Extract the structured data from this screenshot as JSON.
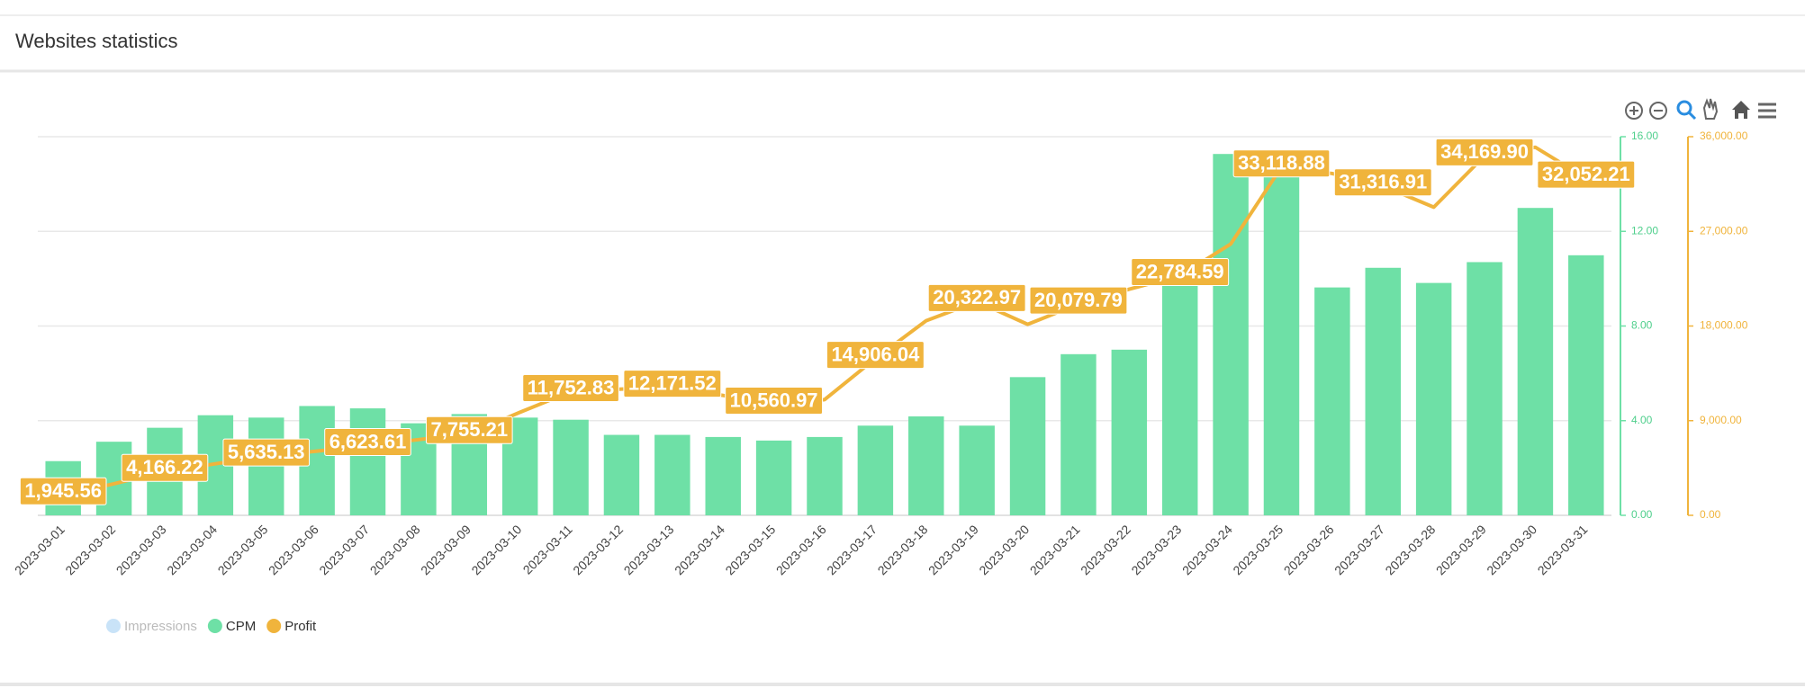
{
  "header": {
    "title": "Websites statistics"
  },
  "chart_data": {
    "type": "bar-line",
    "categories": [
      "2023-03-01",
      "2023-03-02",
      "2023-03-03",
      "2023-03-04",
      "2023-03-05",
      "2023-03-06",
      "2023-03-07",
      "2023-03-08",
      "2023-03-09",
      "2023-03-10",
      "2023-03-11",
      "2023-03-12",
      "2023-03-13",
      "2023-03-14",
      "2023-03-15",
      "2023-03-16",
      "2023-03-17",
      "2023-03-18",
      "2023-03-19",
      "2023-03-20",
      "2023-03-21",
      "2023-03-22",
      "2023-03-23",
      "2023-03-24",
      "2023-03-25",
      "2023-03-26",
      "2023-03-27",
      "2023-03-28",
      "2023-03-29",
      "2023-03-30",
      "2023-03-31"
    ],
    "series": [
      {
        "name": "Impressions",
        "color": "#c9e3f8",
        "visible": false
      },
      {
        "name": "CPM",
        "color": "#6ee0a6",
        "kind": "bar",
        "axis": "y",
        "values": [
          2.29,
          3.11,
          3.7,
          4.23,
          4.13,
          4.62,
          4.52,
          3.89,
          4.28,
          4.13,
          4.04,
          3.4,
          3.4,
          3.31,
          3.16,
          3.31,
          3.79,
          4.18,
          3.79,
          5.84,
          6.81,
          7.0,
          10.12,
          15.27,
          14.74,
          9.63,
          10.46,
          9.82,
          10.7,
          12.99,
          10.99
        ]
      },
      {
        "name": "Profit",
        "color": "#f0b43c",
        "kind": "line",
        "axis": "y2",
        "values": [
          1945.56,
          3000,
          4166.22,
          4900,
          5635.13,
          6100,
          6623.61,
          7200,
          7755.21,
          9800,
          11752.83,
          12000,
          12171.52,
          11400,
          10560.97,
          11000,
          14906.04,
          18500,
          20322.97,
          18160,
          20079.79,
          21500,
          22784.59,
          25800,
          33118.88,
          32500,
          31316.91,
          29300,
          34169.9,
          35000,
          32052.21
        ],
        "value_labels": [
          "1,945.56",
          null,
          "4,166.22",
          null,
          "5,635.13",
          null,
          "6,623.61",
          null,
          "7,755.21",
          null,
          "11,752.83",
          null,
          "12,171.52",
          null,
          "10,560.97",
          null,
          "14,906.04",
          null,
          "20,322.97",
          null,
          "20,079.79",
          null,
          "22,784.59",
          null,
          "33,118.88",
          null,
          "31,316.91",
          null,
          "34,169.90",
          null,
          "32,052.21"
        ]
      }
    ],
    "ylim": [
      0,
      16
    ],
    "yticks": [
      {
        "value": 0,
        "label": "0.00"
      },
      {
        "value": 4,
        "label": "4.00"
      },
      {
        "value": 8,
        "label": "8.00"
      },
      {
        "value": 12,
        "label": "12.00"
      },
      {
        "value": 16,
        "label": "16.00"
      }
    ],
    "y2lim": [
      0,
      36000
    ],
    "y2ticks": [
      {
        "value": 0,
        "label": "0.00"
      },
      {
        "value": 9000,
        "label": "9,000.00"
      },
      {
        "value": 18000,
        "label": "18,000.00"
      },
      {
        "value": 27000,
        "label": "27,000.00"
      },
      {
        "value": 36000,
        "label": "36,000.00"
      }
    ],
    "grid": true
  }
}
